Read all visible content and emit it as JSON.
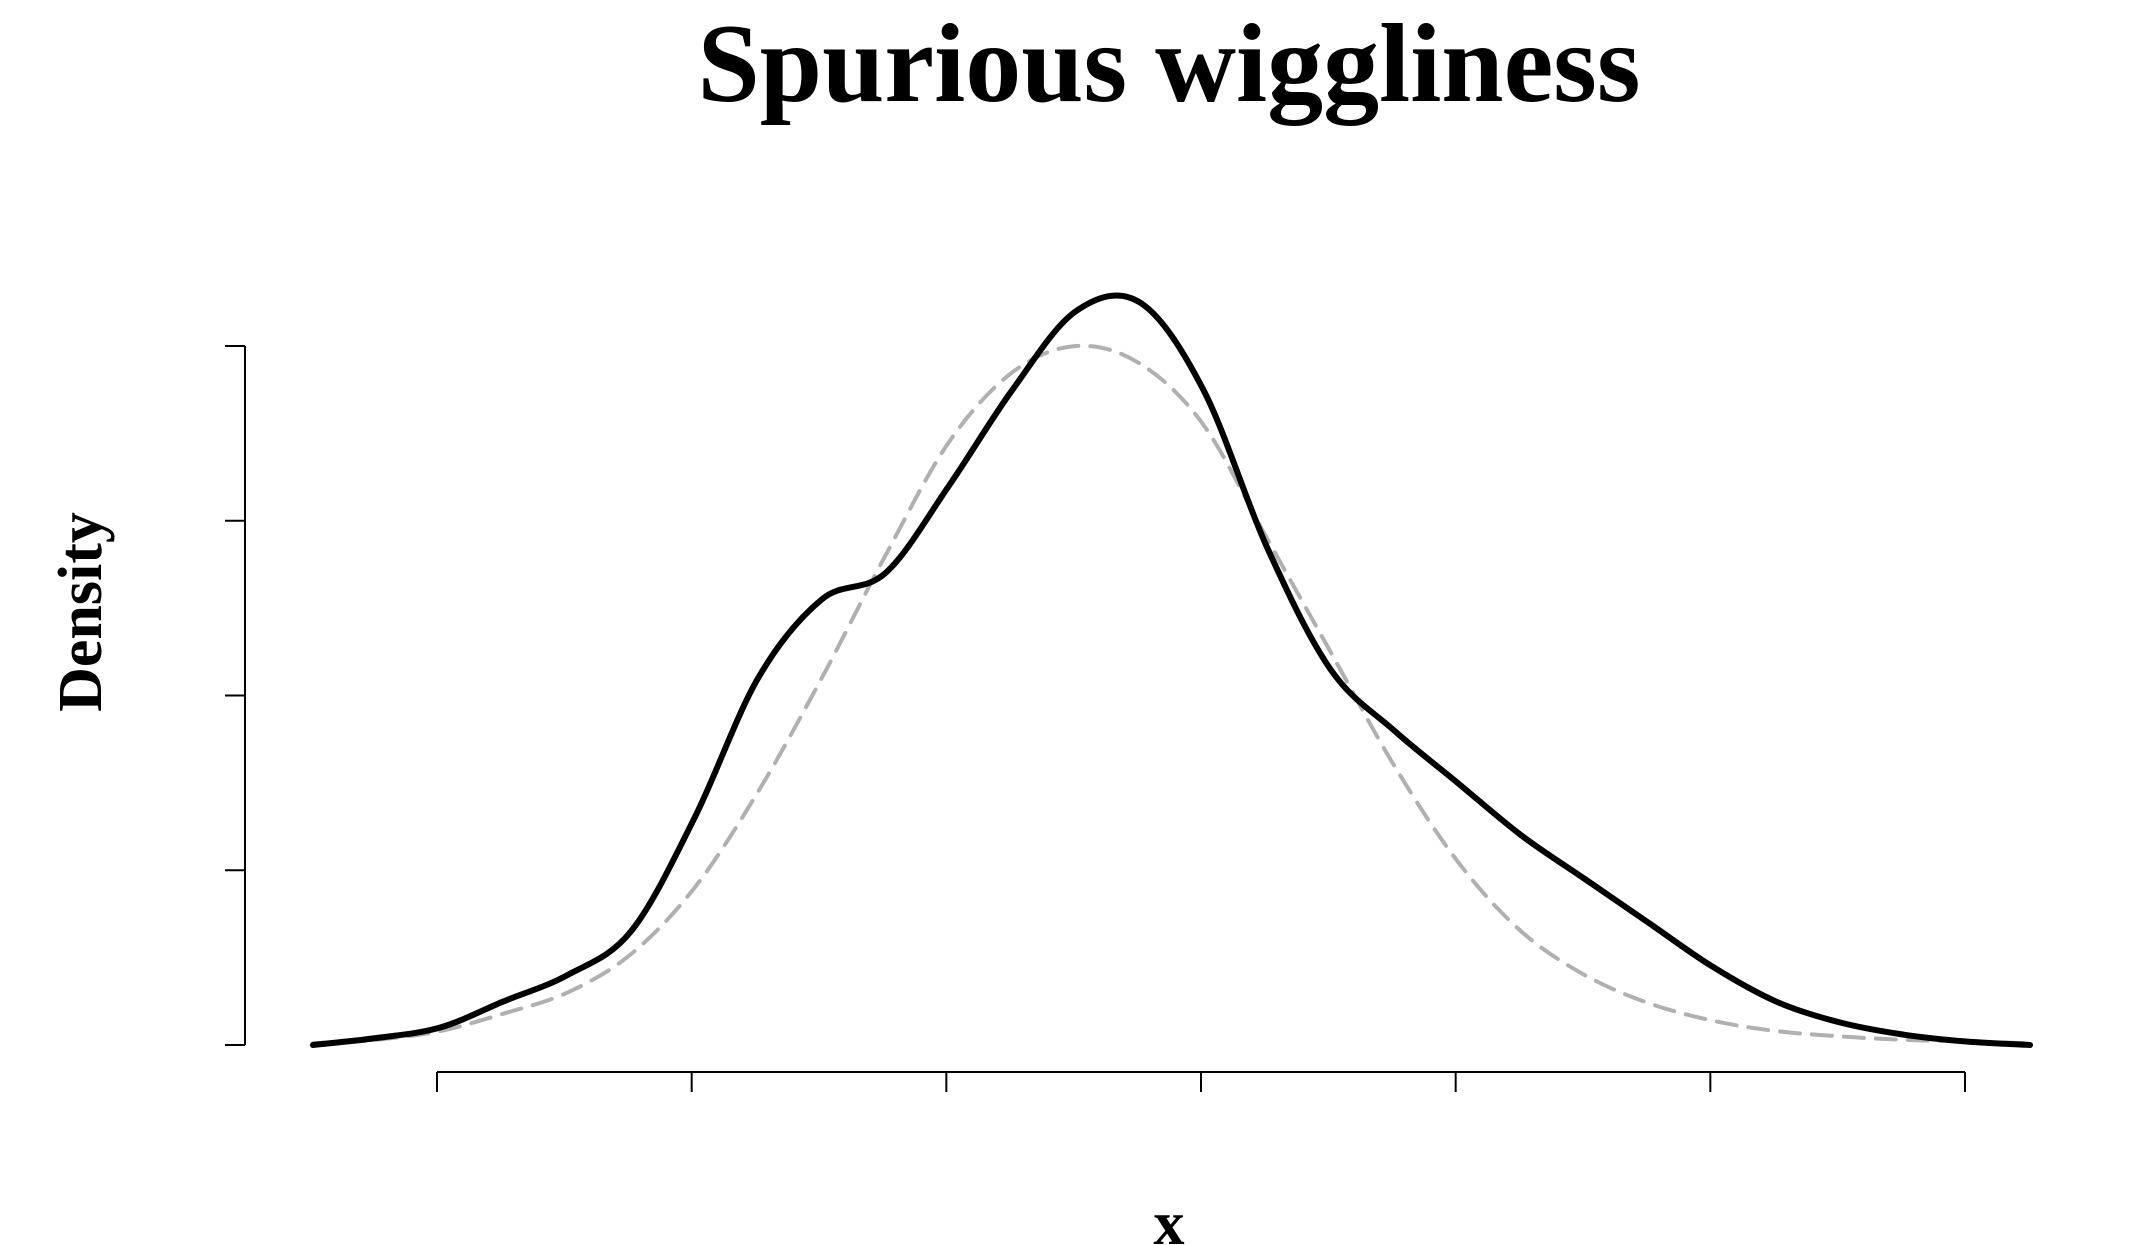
{
  "chart_data": {
    "type": "line",
    "title": "Spurious wiggliness",
    "xlabel": "x",
    "ylabel": "Density",
    "xlim": [
      -3.25,
      3.5
    ],
    "ylim": [
      0,
      0.4
    ],
    "x_ticks": [
      -2,
      -1,
      0,
      1,
      2,
      3,
      4
    ],
    "y_ticks": [
      0,
      0.1,
      0.2,
      0.3,
      0.4
    ],
    "tick_labels_visible": false,
    "grid": false,
    "legend": "none",
    "series": [
      {
        "style": "solid",
        "color": "#000000",
        "x": [
          -3.25,
          -3.0,
          -2.75,
          -2.5,
          -2.25,
          -2.0,
          -1.75,
          -1.5,
          -1.25,
          -1.0,
          -0.75,
          -0.5,
          -0.25,
          0.0,
          0.25,
          0.5,
          0.75,
          1.0,
          1.25,
          1.5,
          1.75,
          2.0,
          2.25,
          2.5,
          2.75,
          3.0,
          3.25,
          3.5
        ],
        "values": [
          0.0,
          0.004,
          0.01,
          0.025,
          0.04,
          0.065,
          0.13,
          0.21,
          0.255,
          0.27,
          0.32,
          0.375,
          0.42,
          0.425,
          0.375,
          0.285,
          0.215,
          0.18,
          0.15,
          0.12,
          0.095,
          0.07,
          0.045,
          0.025,
          0.013,
          0.006,
          0.002,
          0.0
        ]
      },
      {
        "style": "dashed",
        "color": "#b0b0b0",
        "x": [
          -3.25,
          -3.0,
          -2.75,
          -2.5,
          -2.25,
          -2.0,
          -1.75,
          -1.5,
          -1.25,
          -1.0,
          -0.75,
          -0.5,
          -0.25,
          0.0,
          0.25,
          0.5,
          0.75,
          1.0,
          1.25,
          1.5,
          1.75,
          2.0,
          2.25,
          2.5,
          2.75,
          3.0,
          3.25,
          3.5
        ],
        "values": [
          0.001,
          0.003,
          0.008,
          0.018,
          0.03,
          0.052,
          0.09,
          0.145,
          0.21,
          0.28,
          0.345,
          0.385,
          0.4,
          0.39,
          0.355,
          0.29,
          0.225,
          0.16,
          0.105,
          0.065,
          0.04,
          0.024,
          0.014,
          0.008,
          0.005,
          0.003,
          0.002,
          0.001
        ]
      }
    ]
  }
}
